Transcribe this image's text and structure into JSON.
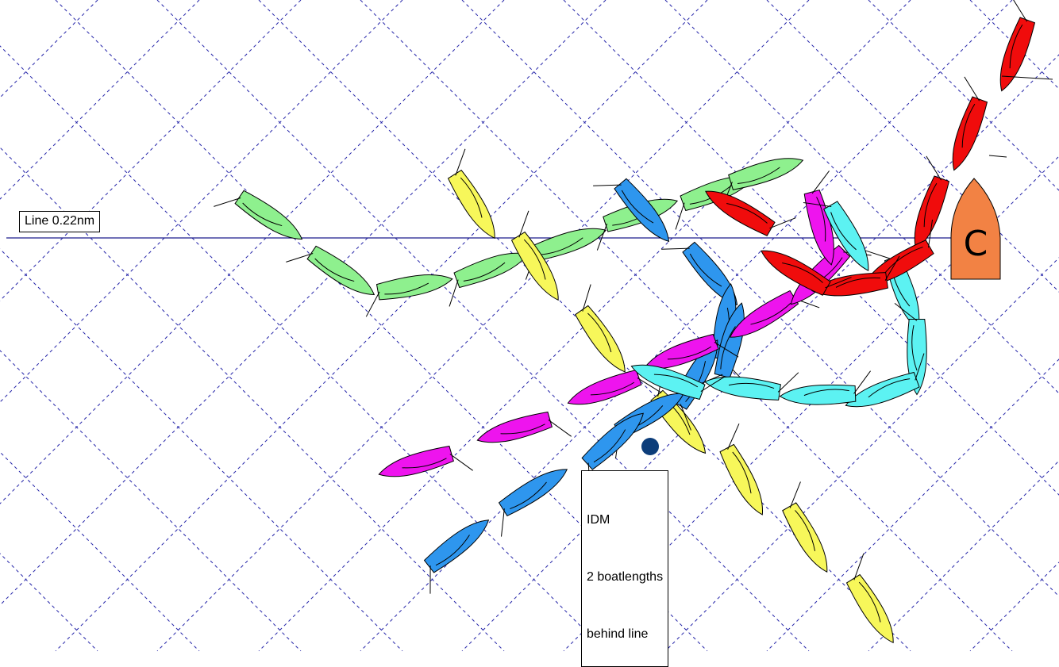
{
  "line_label": "Line 0.22nm",
  "mark_label": "IDM",
  "idm_note": [
    "IDM",
    "2 boatlengths",
    "behind line"
  ],
  "committee_boat_letter": "C",
  "colors": {
    "grid": "#2323a8",
    "start_line": "#1a1a8c",
    "committee_boat": "#f28244",
    "mark": "#0c3d7a",
    "green": "#8ef08e",
    "yellow": "#f7f75a",
    "blue": "#2e96ee",
    "magenta": "#ee14ee",
    "cyan": "#5cf2f2",
    "red": "#f00c0c"
  },
  "boat_tracks": [
    {
      "name": "green",
      "color_key": "green",
      "sail_side": 1
    },
    {
      "name": "yellow",
      "color_key": "yellow",
      "sail_side": -1
    },
    {
      "name": "blue-1",
      "color_key": "blue",
      "sail_side": 1
    },
    {
      "name": "blue-2",
      "color_key": "blue",
      "sail_side": -1
    },
    {
      "name": "magenta",
      "color_key": "magenta",
      "sail_side": -1
    },
    {
      "name": "cyan",
      "color_key": "cyan",
      "sail_side": 1
    },
    {
      "name": "red",
      "color_key": "red",
      "sail_side": 1
    }
  ]
}
